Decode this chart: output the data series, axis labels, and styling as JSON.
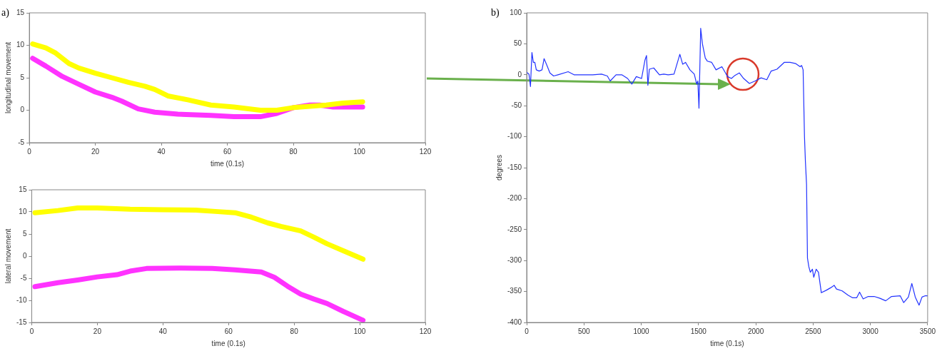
{
  "chart_data": [
    {
      "type": "line",
      "title": "a)",
      "xlabel": "time (0.1s)",
      "ylabel": "longitudinal movement",
      "xlim": [
        0,
        120
      ],
      "xticks": [
        0,
        20,
        40,
        60,
        80,
        100,
        120
      ],
      "ylim": [
        -5,
        15
      ],
      "yticks": [
        -5,
        0,
        5,
        10,
        15
      ],
      "grid": false,
      "legend": false,
      "marker": "none",
      "line_style": "solid",
      "series": [
        {
          "color": "#ffff00",
          "x": [
            1,
            5,
            8,
            12,
            15,
            20,
            25,
            30,
            35,
            38,
            42,
            48,
            55,
            62,
            70,
            75,
            80,
            85,
            90,
            95,
            101
          ],
          "values": [
            10.2,
            9.6,
            8.8,
            7.2,
            6.5,
            5.7,
            5.0,
            4.3,
            3.7,
            3.2,
            2.2,
            1.6,
            0.8,
            0.5,
            0,
            0,
            0.4,
            0.6,
            0.8,
            1.1,
            1.3
          ]
        },
        {
          "color": "#ff33ff",
          "x": [
            1,
            5,
            10,
            15,
            20,
            25,
            28,
            33,
            38,
            45,
            55,
            62,
            70,
            75,
            80,
            85,
            88,
            92,
            96,
            101
          ],
          "values": [
            8.0,
            6.8,
            5.2,
            4.0,
            2.8,
            2.0,
            1.4,
            0.2,
            -0.3,
            -0.6,
            -0.8,
            -1.0,
            -1.0,
            -0.5,
            0.4,
            0.8,
            0.8,
            0.5,
            0.5,
            0.5
          ]
        }
      ]
    },
    {
      "type": "line",
      "xlabel": "time (0.1s)",
      "ylabel": "lateral movement",
      "xlim": [
        0,
        120
      ],
      "xticks": [
        0,
        20,
        40,
        60,
        80,
        100,
        120
      ],
      "ylim": [
        -15,
        15
      ],
      "yticks": [
        -15,
        -10,
        -5,
        0,
        5,
        10,
        15
      ],
      "grid": false,
      "legend": false,
      "marker": "none",
      "line_style": "solid",
      "series": [
        {
          "color": "#ffff00",
          "x": [
            1,
            8,
            14,
            20,
            30,
            40,
            50,
            56,
            62,
            67,
            72,
            76,
            82,
            86,
            90,
            95,
            101
          ],
          "values": [
            9.8,
            10.3,
            10.9,
            10.9,
            10.6,
            10.5,
            10.4,
            10.1,
            9.8,
            8.8,
            7.5,
            6.7,
            5.7,
            4.3,
            2.8,
            1.2,
            -0.7
          ]
        },
        {
          "color": "#ff33ff",
          "x": [
            1,
            8,
            14,
            20,
            26,
            30,
            35,
            45,
            55,
            62,
            70,
            74,
            78,
            82,
            86,
            90,
            95,
            101
          ],
          "values": [
            -6.9,
            -6.0,
            -5.4,
            -4.7,
            -4.2,
            -3.4,
            -2.8,
            -2.7,
            -2.8,
            -3.1,
            -3.6,
            -4.8,
            -6.8,
            -8.6,
            -9.7,
            -10.7,
            -12.5,
            -14.5
          ]
        }
      ]
    },
    {
      "type": "line",
      "title": "b)",
      "xlabel": "time (0.1s)",
      "ylabel": "degrees",
      "xlim": [
        0,
        3500
      ],
      "xticks": [
        0,
        500,
        1000,
        1500,
        2000,
        2500,
        3000,
        3500
      ],
      "ylim": [
        -400,
        100
      ],
      "yticks": [
        -400,
        -350,
        -300,
        -250,
        -200,
        -150,
        -100,
        -50,
        0,
        50,
        100
      ],
      "grid": false,
      "legend": false,
      "marker": "none",
      "line_style": "solid",
      "series": [
        {
          "color": "#2233ff",
          "x": [
            0,
            20,
            33,
            46,
            58,
            71,
            84,
            109,
            134,
            152,
            177,
            203,
            235,
            273,
            362,
            413,
            577,
            653,
            704,
            729,
            780,
            830,
            881,
            918,
            957,
            1003,
            1033,
            1046,
            1058,
            1071,
            1109,
            1159,
            1197,
            1235,
            1286,
            1337,
            1362,
            1387,
            1425,
            1463,
            1484,
            1494,
            1504,
            1519,
            1534,
            1559,
            1577,
            1615,
            1653,
            1704,
            1754,
            1787,
            1818,
            1856,
            1894,
            1944,
            1995,
            2046,
            2096,
            2134,
            2185,
            2248,
            2299,
            2349,
            2387,
            2400,
            2413,
            2425,
            2433,
            2443,
            2451,
            2463,
            2476,
            2494,
            2506,
            2527,
            2547,
            2572,
            2615,
            2653,
            2684,
            2704,
            2754,
            2805,
            2843,
            2881,
            2906,
            2937,
            2982,
            3033,
            3084,
            3134,
            3185,
            3261,
            3291,
            3332,
            3362,
            3392,
            3425,
            3451,
            3476,
            3500
          ],
          "values": [
            4,
            1,
            -19,
            36,
            20,
            20,
            8,
            6,
            8,
            26,
            15,
            3,
            -2,
            0,
            5,
            0,
            0,
            1,
            -2,
            -10,
            0,
            0,
            -6,
            -15,
            -3,
            -6,
            24,
            31,
            -17,
            9,
            11,
            0,
            1,
            0,
            1,
            33,
            17,
            20,
            8,
            1,
            -15,
            -10,
            -54,
            75,
            50,
            27,
            22,
            20,
            8,
            13,
            -3,
            -6,
            -1,
            3,
            -6,
            -14,
            -10,
            -5,
            -8,
            6,
            9,
            20,
            20,
            18,
            13,
            15,
            8,
            -100,
            -140,
            -177,
            -296,
            -310,
            -319,
            -314,
            -327,
            -314,
            -319,
            -352,
            -348,
            -344,
            -340,
            -346,
            -349,
            -356,
            -360,
            -360,
            -351,
            -362,
            -358,
            -358,
            -361,
            -365,
            -358,
            -357,
            -368,
            -359,
            -337,
            -359,
            -372,
            -359,
            -357,
            -357
          ]
        }
      ]
    }
  ]
}
